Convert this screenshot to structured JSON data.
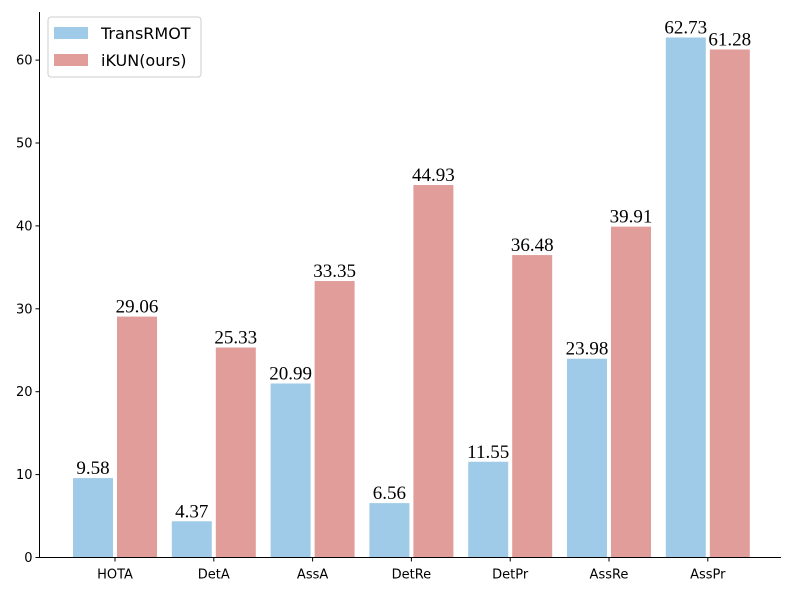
{
  "chart_data": {
    "type": "bar",
    "categories": [
      "HOTA",
      "DetA",
      "AssA",
      "DetRe",
      "DetPr",
      "AssRe",
      "AssPr"
    ],
    "series": [
      {
        "name": "TransRMOT",
        "color": "#9fcbe8",
        "values": [
          9.58,
          4.37,
          20.99,
          6.56,
          11.55,
          23.98,
          62.73
        ]
      },
      {
        "name": "iKUN(ours)",
        "color": "#e19d9a",
        "values": [
          29.06,
          25.33,
          33.35,
          44.93,
          36.48,
          39.91,
          61.28
        ]
      }
    ],
    "value_labels": [
      [
        "9.58",
        "4.37",
        "20.99",
        "6.56",
        "11.55",
        "23.98",
        "62.73"
      ],
      [
        "29.06",
        "25.33",
        "33.35",
        "44.93",
        "36.48",
        "39.91",
        "61.28"
      ]
    ],
    "ylim": [
      0,
      66
    ],
    "yticks": [
      0,
      10,
      20,
      30,
      40,
      50,
      60
    ],
    "ytick_labels": [
      "0",
      "10",
      "20",
      "30",
      "40",
      "50",
      "60"
    ],
    "legend_position": "top-left",
    "grid": false
  }
}
